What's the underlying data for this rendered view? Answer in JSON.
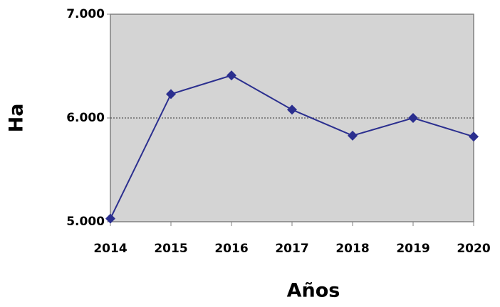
{
  "chart_data": {
    "type": "line",
    "x_label": "Años",
    "y_label": "Ha",
    "x": [
      2014,
      2015,
      2016,
      2017,
      2018,
      2019,
      2020
    ],
    "series": [
      {
        "name": "Ha",
        "color": "#2b2f8f",
        "values": [
          5030,
          6230,
          6410,
          6080,
          5830,
          6000,
          5820
        ]
      }
    ],
    "xlim": [
      2014,
      2020
    ],
    "xticks": [
      2014,
      2015,
      2016,
      2017,
      2018,
      2019,
      2020
    ],
    "ylim": [
      5000,
      7000
    ],
    "yticks": [
      {
        "value": 5000,
        "label": "5.000"
      },
      {
        "value": 6000,
        "label": "6.000"
      },
      {
        "value": 7000,
        "label": "7.000"
      }
    ],
    "grid": true,
    "background": "#d4d4d4"
  }
}
